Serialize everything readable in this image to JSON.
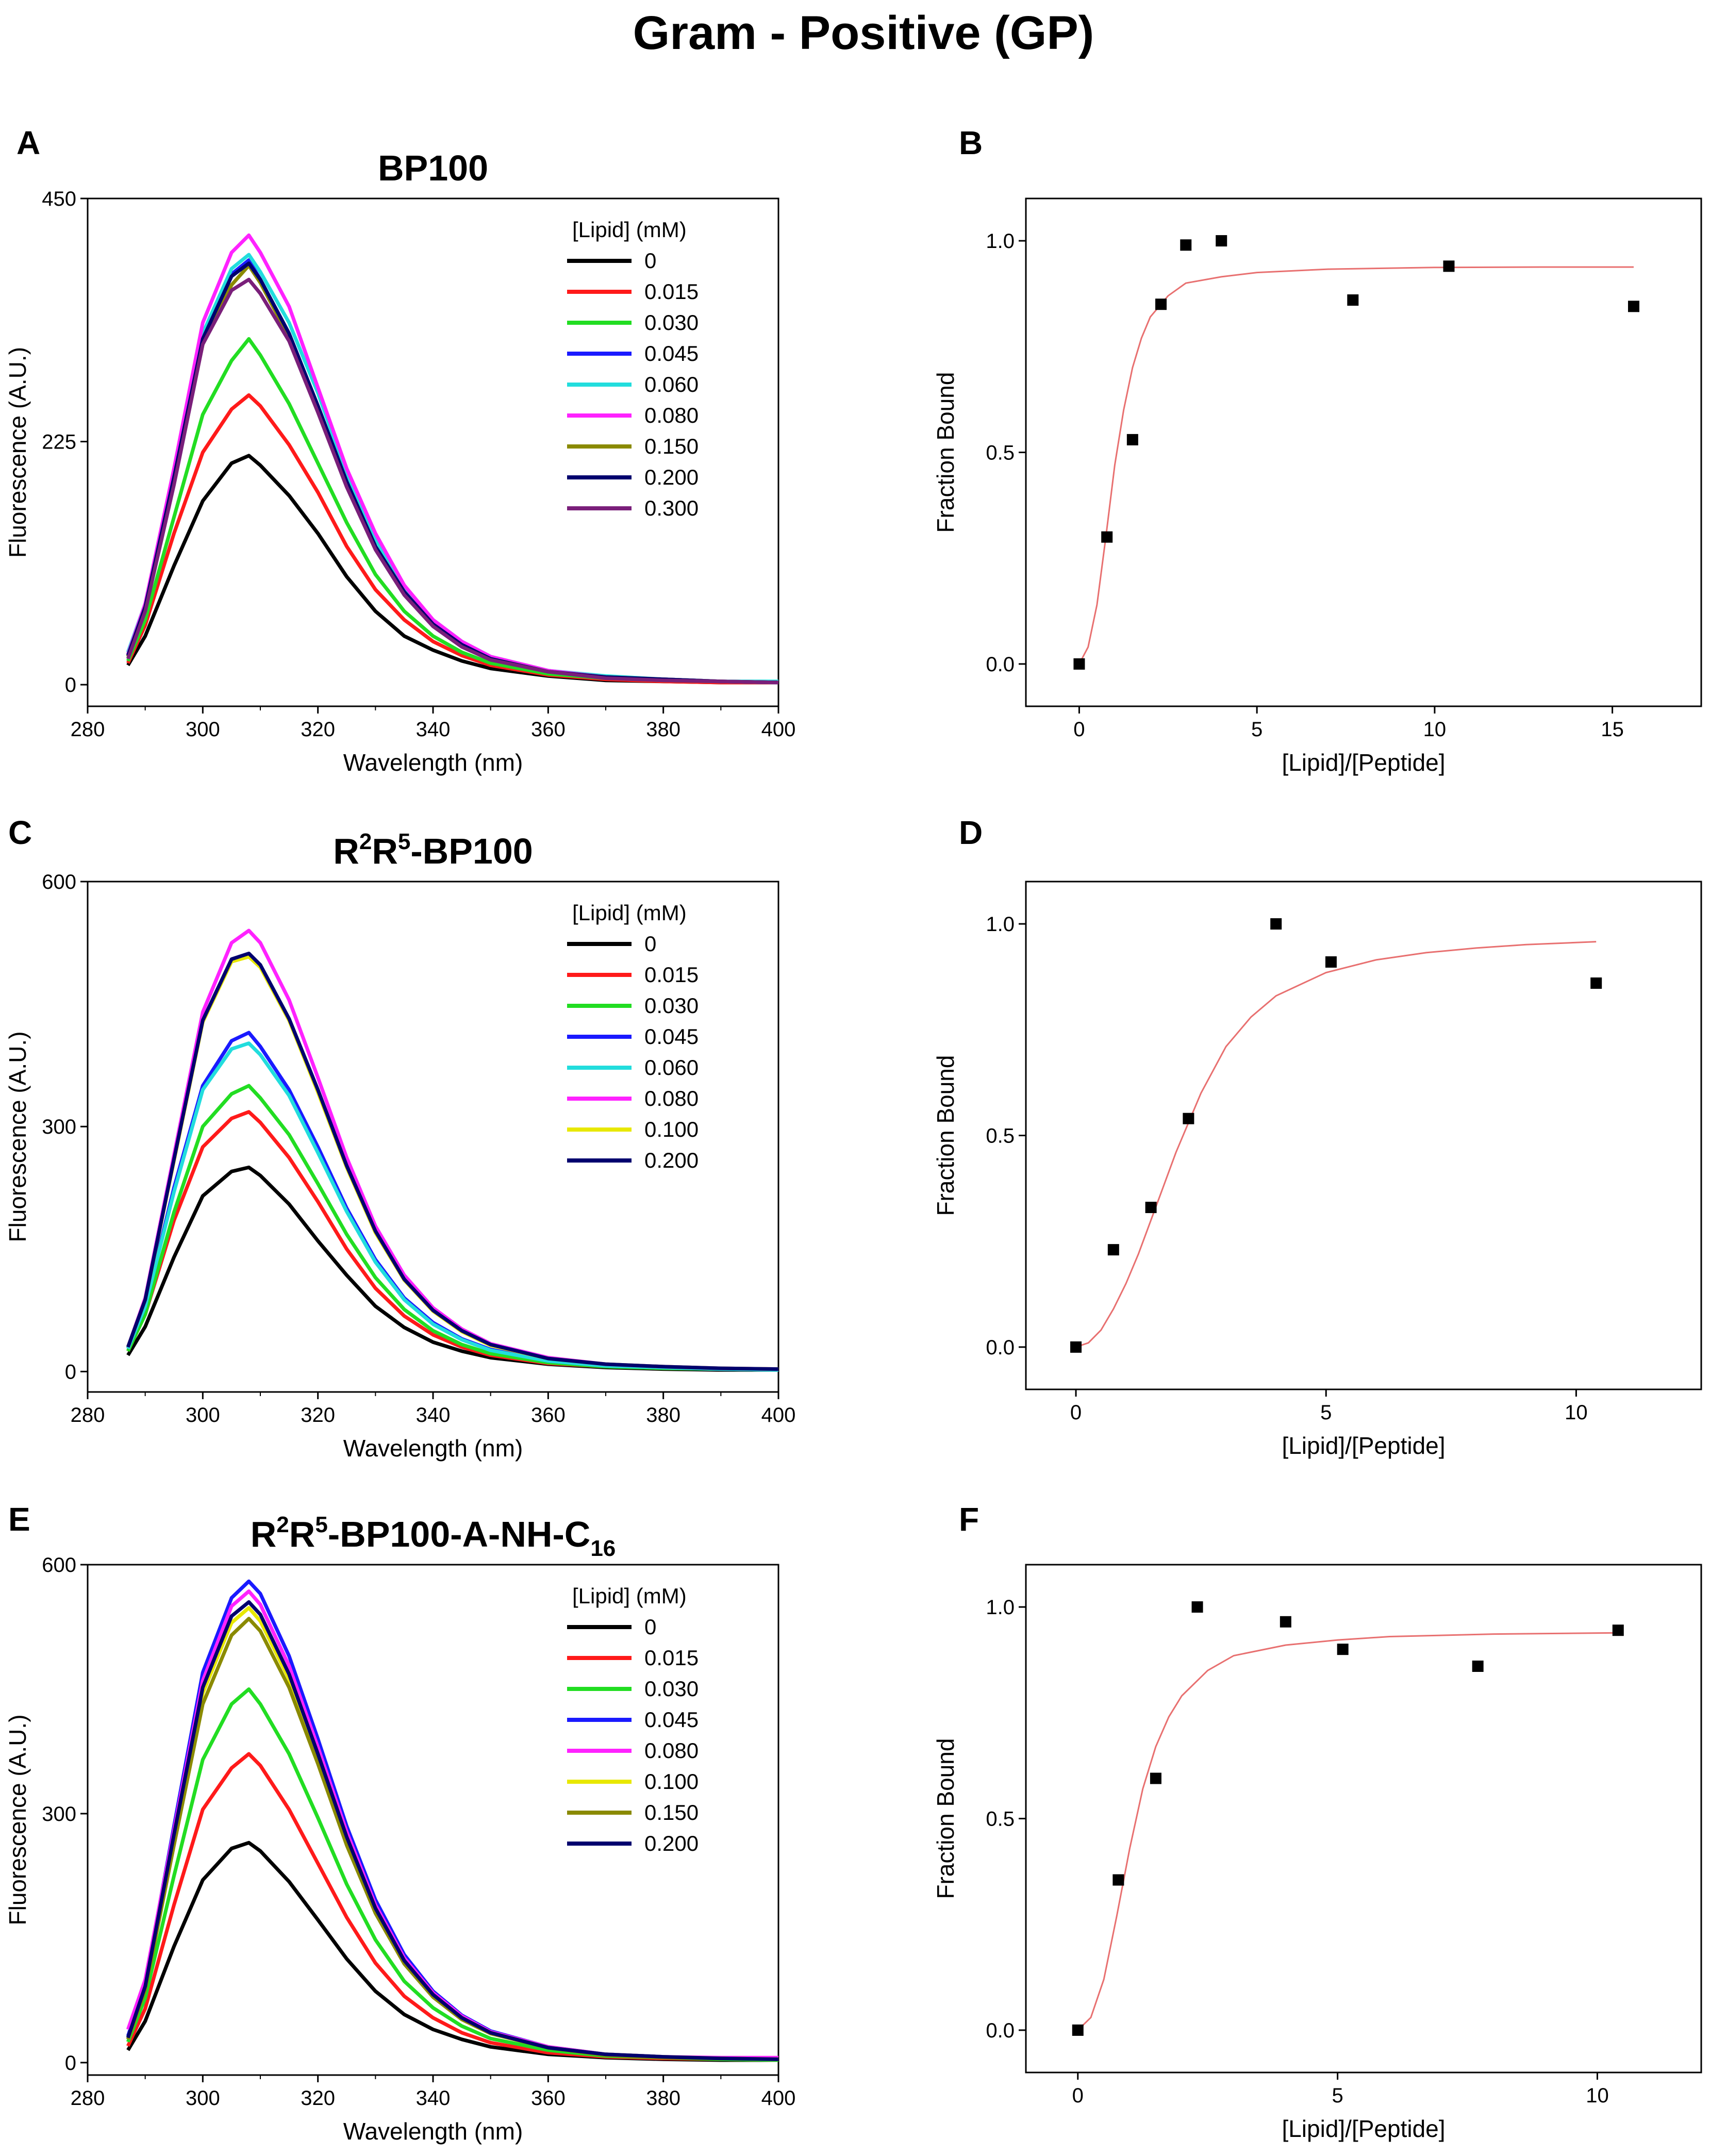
{
  "figure": {
    "title": "Gram - Positive (GP)",
    "panel_labels": [
      "A",
      "B",
      "C",
      "D",
      "E",
      "F"
    ]
  },
  "chart_data": [
    {
      "panel": "A",
      "type": "line",
      "title": "BP100",
      "title_sup": [],
      "title_sub": [],
      "xlabel": "Wavelength (nm)",
      "ylabel": "Fluorescence (A.U.)",
      "xlim": [
        280,
        400
      ],
      "ylim": [
        -20,
        450
      ],
      "xticks": [
        280,
        300,
        320,
        340,
        360,
        380,
        400
      ],
      "yticks": [
        0,
        225,
        450
      ],
      "legend_title": "[Lipid] (mM)",
      "legend_position": "top-right",
      "x_shared": [
        287,
        290,
        295,
        300,
        305,
        308,
        310,
        315,
        320,
        325,
        330,
        335,
        340,
        345,
        350,
        360,
        370,
        380,
        390,
        400
      ],
      "series": [
        {
          "name": "0",
          "color": "#000000",
          "values": [
            18,
            45,
            110,
            170,
            205,
            212,
            203,
            175,
            140,
            100,
            68,
            45,
            32,
            22,
            15,
            8,
            4,
            3,
            2,
            2
          ]
        },
        {
          "name": "0.015",
          "color": "#ff1a1a",
          "values": [
            20,
            55,
            140,
            215,
            255,
            268,
            258,
            222,
            178,
            128,
            88,
            60,
            40,
            27,
            18,
            9,
            5,
            3,
            2,
            2
          ]
        },
        {
          "name": "0.030",
          "color": "#22dd22",
          "values": [
            22,
            60,
            155,
            250,
            300,
            320,
            305,
            260,
            205,
            150,
            102,
            68,
            45,
            30,
            20,
            10,
            6,
            4,
            3,
            2
          ]
        },
        {
          "name": "0.045",
          "color": "#1a1aff",
          "values": [
            28,
            70,
            190,
            320,
            380,
            393,
            375,
            325,
            258,
            188,
            128,
            85,
            55,
            36,
            24,
            12,
            7,
            5,
            3,
            2
          ]
        },
        {
          "name": "0.060",
          "color": "#22dddd",
          "values": [
            30,
            75,
            195,
            325,
            385,
            398,
            382,
            335,
            270,
            195,
            135,
            90,
            60,
            40,
            26,
            13,
            8,
            5,
            3,
            3
          ]
        },
        {
          "name": "0.080",
          "color": "#ff22ff",
          "values": [
            28,
            75,
            200,
            335,
            400,
            416,
            400,
            350,
            275,
            200,
            140,
            92,
            60,
            40,
            26,
            13,
            7,
            5,
            3,
            2
          ]
        },
        {
          "name": "0.150",
          "color": "#8a8a00",
          "values": [
            26,
            72,
            190,
            315,
            370,
            388,
            372,
            322,
            255,
            185,
            126,
            84,
            55,
            36,
            24,
            12,
            7,
            5,
            3,
            2
          ]
        },
        {
          "name": "0.200",
          "color": "#00006e",
          "values": [
            27,
            72,
            192,
            320,
            378,
            390,
            375,
            325,
            258,
            188,
            128,
            86,
            56,
            37,
            24,
            12,
            7,
            5,
            3,
            2
          ]
        },
        {
          "name": "0.300",
          "color": "#7a1f7a",
          "values": [
            24,
            68,
            185,
            315,
            365,
            375,
            362,
            318,
            252,
            183,
            125,
            83,
            54,
            35,
            23,
            12,
            6,
            4,
            3,
            2
          ]
        }
      ]
    },
    {
      "panel": "B",
      "type": "scatter",
      "title": "",
      "xlabel": "[Lipid]/[Peptide]",
      "ylabel": "Fraction Bound",
      "xlim": [
        -1.5,
        17.5
      ],
      "ylim": [
        -0.1,
        1.1
      ],
      "xticks": [
        0,
        5,
        10,
        15
      ],
      "yticks": [
        0.0,
        0.5,
        1.0
      ],
      "ytick_labels": [
        "0.0",
        "0.5",
        "1.0"
      ],
      "points": {
        "x": [
          0,
          0.78,
          1.5,
          2.3,
          3.0,
          4.0,
          7.7,
          10.4,
          15.6
        ],
        "y": [
          0.0,
          0.3,
          0.53,
          0.85,
          0.99,
          1.0,
          0.86,
          0.94,
          0.845
        ]
      },
      "fit": {
        "color": "#e87070",
        "x": [
          0,
          0.25,
          0.5,
          0.75,
          1.0,
          1.25,
          1.5,
          1.75,
          2.0,
          2.5,
          3.0,
          4.0,
          5.0,
          7.0,
          10.0,
          13.0,
          15.6
        ],
        "y": [
          0.0,
          0.04,
          0.14,
          0.3,
          0.47,
          0.6,
          0.7,
          0.77,
          0.82,
          0.87,
          0.9,
          0.915,
          0.925,
          0.933,
          0.937,
          0.938,
          0.938
        ]
      }
    },
    {
      "panel": "C",
      "type": "line",
      "title": "R2R5-BP100",
      "title_sup": [
        "2",
        "5"
      ],
      "title_sub": [],
      "xlabel": "Wavelength (nm)",
      "ylabel": "Fluorescence (A.U.)",
      "xlim": [
        280,
        400
      ],
      "ylim": [
        -25,
        600
      ],
      "xticks": [
        280,
        300,
        320,
        340,
        360,
        380,
        400
      ],
      "yticks": [
        0,
        300,
        600
      ],
      "legend_title": "[Lipid] (mM)",
      "legend_position": "top-right",
      "x_shared": [
        287,
        290,
        295,
        300,
        305,
        308,
        310,
        315,
        320,
        325,
        330,
        335,
        340,
        345,
        350,
        360,
        370,
        380,
        390,
        400
      ],
      "series": [
        {
          "name": "0",
          "color": "#000000",
          "values": [
            20,
            55,
            140,
            215,
            245,
            250,
            240,
            205,
            160,
            118,
            80,
            54,
            36,
            25,
            17,
            9,
            5,
            3,
            2,
            2
          ]
        },
        {
          "name": "0.015",
          "color": "#ff1a1a",
          "values": [
            25,
            70,
            185,
            275,
            310,
            318,
            305,
            262,
            208,
            150,
            102,
            68,
            45,
            30,
            20,
            10,
            6,
            4,
            3,
            2
          ]
        },
        {
          "name": "0.030",
          "color": "#22dd22",
          "values": [
            25,
            70,
            195,
            300,
            340,
            350,
            335,
            290,
            230,
            168,
            115,
            76,
            50,
            33,
            22,
            11,
            6,
            4,
            3,
            2
          ]
        },
        {
          "name": "0.045",
          "color": "#1a1aff",
          "values": [
            28,
            80,
            225,
            350,
            405,
            415,
            398,
            345,
            275,
            200,
            137,
            90,
            60,
            40,
            27,
            13,
            7,
            5,
            3,
            2
          ]
        },
        {
          "name": "0.060",
          "color": "#22dddd",
          "values": [
            28,
            80,
            220,
            345,
            395,
            402,
            388,
            338,
            268,
            196,
            134,
            88,
            58,
            39,
            26,
            13,
            7,
            5,
            3,
            2
          ]
        },
        {
          "name": "0.080",
          "color": "#ff22ff",
          "values": [
            30,
            90,
            265,
            440,
            525,
            540,
            525,
            455,
            360,
            262,
            178,
            118,
            78,
            52,
            34,
            17,
            9,
            6,
            4,
            3
          ]
        },
        {
          "name": "0.100",
          "color": "#e8e800",
          "values": [
            30,
            88,
            258,
            428,
            502,
            508,
            495,
            430,
            342,
            250,
            170,
            112,
            74,
            49,
            32,
            16,
            9,
            6,
            4,
            3
          ]
        },
        {
          "name": "0.200",
          "color": "#00006e",
          "values": [
            30,
            88,
            260,
            430,
            505,
            512,
            498,
            432,
            345,
            252,
            172,
            113,
            75,
            50,
            33,
            16,
            9,
            6,
            4,
            3
          ]
        }
      ]
    },
    {
      "panel": "D",
      "type": "scatter",
      "title": "",
      "xlabel": "[Lipid]/[Peptide]",
      "ylabel": "Fraction Bound",
      "xlim": [
        -1.0,
        12.5
      ],
      "ylim": [
        -0.1,
        1.1
      ],
      "xticks": [
        0,
        5,
        10
      ],
      "yticks": [
        0.0,
        0.5,
        1.0
      ],
      "ytick_labels": [
        "0.0",
        "0.5",
        "1.0"
      ],
      "points": {
        "x": [
          0,
          0.75,
          1.5,
          2.25,
          4.0,
          5.1,
          10.4
        ],
        "y": [
          0.0,
          0.23,
          0.33,
          0.54,
          1.0,
          0.91,
          0.86
        ]
      },
      "fit": {
        "color": "#e87070",
        "x": [
          0,
          0.25,
          0.5,
          0.75,
          1.0,
          1.25,
          1.5,
          1.75,
          2.0,
          2.5,
          3.0,
          3.5,
          4.0,
          5.0,
          6.0,
          7.0,
          8.0,
          9.0,
          10.4
        ],
        "y": [
          0.0,
          0.01,
          0.04,
          0.09,
          0.15,
          0.22,
          0.3,
          0.38,
          0.46,
          0.6,
          0.71,
          0.78,
          0.83,
          0.885,
          0.915,
          0.932,
          0.943,
          0.951,
          0.958
        ]
      }
    },
    {
      "panel": "E",
      "type": "line",
      "title": "R2R5-BP100-A-NH-C16",
      "title_sup": [
        "2",
        "5"
      ],
      "title_sub": [
        "16"
      ],
      "xlabel": "Wavelength (nm)",
      "ylabel": "Fluorescence (A.U.)",
      "xlim": [
        280,
        400
      ],
      "ylim": [
        -15,
        600
      ],
      "xticks": [
        280,
        300,
        320,
        340,
        360,
        380,
        400
      ],
      "yticks": [
        0,
        300,
        600
      ],
      "legend_title": "[Lipid] (mM)",
      "legend_position": "top-right",
      "x_shared": [
        287,
        290,
        295,
        300,
        305,
        308,
        310,
        315,
        320,
        325,
        330,
        335,
        340,
        345,
        350,
        360,
        370,
        380,
        390,
        400
      ],
      "series": [
        {
          "name": "0",
          "color": "#000000",
          "values": [
            15,
            50,
            140,
            220,
            258,
            265,
            255,
            218,
            172,
            125,
            86,
            58,
            40,
            28,
            19,
            10,
            6,
            4,
            3,
            3
          ]
        },
        {
          "name": "0.015",
          "color": "#ff1a1a",
          "values": [
            20,
            65,
            190,
            305,
            355,
            372,
            358,
            305,
            240,
            175,
            120,
            80,
            54,
            36,
            24,
            12,
            7,
            5,
            4,
            3
          ]
        },
        {
          "name": "0.030",
          "color": "#22dd22",
          "values": [
            25,
            78,
            225,
            365,
            432,
            450,
            432,
            372,
            295,
            215,
            148,
            98,
            66,
            44,
            29,
            15,
            8,
            6,
            4,
            3
          ]
        },
        {
          "name": "0.045",
          "color": "#1a1aff",
          "values": [
            32,
            95,
            285,
            470,
            560,
            580,
            565,
            490,
            390,
            285,
            196,
            130,
            86,
            57,
            38,
            19,
            10,
            7,
            5,
            4
          ]
        },
        {
          "name": "0.080",
          "color": "#ff22ff",
          "values": [
            40,
            100,
            280,
            460,
            550,
            568,
            552,
            478,
            380,
            278,
            190,
            126,
            84,
            56,
            37,
            19,
            10,
            7,
            6,
            6
          ]
        },
        {
          "name": "0.100",
          "color": "#e8e800",
          "values": [
            30,
            90,
            270,
            445,
            530,
            548,
            532,
            462,
            368,
            268,
            184,
            122,
            81,
            54,
            36,
            18,
            10,
            7,
            5,
            4
          ]
        },
        {
          "name": "0.150",
          "color": "#8a8a00",
          "values": [
            28,
            88,
            262,
            432,
            515,
            535,
            520,
            452,
            360,
            262,
            180,
            119,
            79,
            52,
            35,
            18,
            9,
            6,
            5,
            4
          ]
        },
        {
          "name": "0.200",
          "color": "#00006e",
          "values": [
            30,
            92,
            275,
            452,
            538,
            555,
            540,
            468,
            372,
            272,
            186,
            123,
            82,
            54,
            36,
            18,
            10,
            7,
            5,
            4
          ]
        }
      ]
    },
    {
      "panel": "F",
      "type": "scatter",
      "title": "",
      "xlabel": "[Lipid]/[Peptide]",
      "ylabel": "Fraction Bound",
      "xlim": [
        -1.0,
        12.0
      ],
      "ylim": [
        -0.1,
        1.1
      ],
      "xticks": [
        0,
        5,
        10
      ],
      "yticks": [
        0.0,
        0.5,
        1.0
      ],
      "ytick_labels": [
        "0.0",
        "0.5",
        "1.0"
      ],
      "points": {
        "x": [
          0,
          0.78,
          1.5,
          2.3,
          4.0,
          5.1,
          7.7,
          10.4
        ],
        "y": [
          0.0,
          0.355,
          0.595,
          1.0,
          0.965,
          0.9,
          0.86,
          0.945
        ]
      },
      "fit": {
        "color": "#e87070",
        "x": [
          0,
          0.25,
          0.5,
          0.75,
          1.0,
          1.25,
          1.5,
          1.75,
          2.0,
          2.5,
          3.0,
          4.0,
          5.0,
          6.0,
          8.0,
          10.4
        ],
        "y": [
          0.0,
          0.03,
          0.12,
          0.27,
          0.43,
          0.57,
          0.67,
          0.74,
          0.79,
          0.85,
          0.885,
          0.91,
          0.922,
          0.93,
          0.936,
          0.939
        ]
      }
    }
  ]
}
